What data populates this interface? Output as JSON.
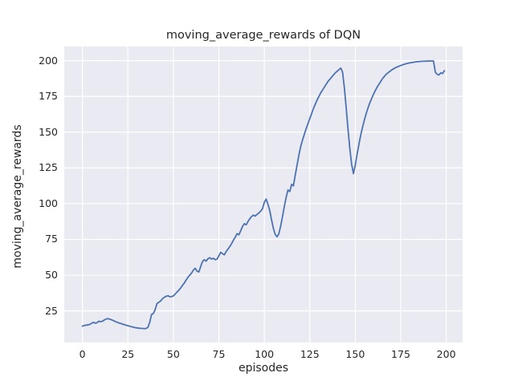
{
  "chart_data": {
    "type": "line",
    "title": "moving_average_rewards of DQN",
    "xlabel": "episodes",
    "ylabel": "moving_average_rewards",
    "x_ticks": [
      0,
      25,
      50,
      75,
      100,
      125,
      150,
      175,
      200
    ],
    "y_ticks": [
      25,
      50,
      75,
      100,
      125,
      150,
      175,
      200
    ],
    "xlim": [
      -10,
      209
    ],
    "ylim": [
      2.9,
      209.9
    ],
    "grid": true,
    "legend_position": "none",
    "colors": {
      "line": "#4C72B0",
      "plot_background": "#EAEAF2",
      "gridline": "#FFFFFF",
      "text": "#262626",
      "figure_background": "#FFFFFF"
    },
    "series": [
      {
        "name": "moving_average_rewards",
        "color": "#4C72B0",
        "x_spec": {
          "start": 0,
          "step": 1,
          "count": 200
        },
        "y": [
          14.3,
          14.8,
          15.0,
          15.2,
          15.5,
          16.3,
          17.0,
          16.4,
          16.7,
          17.8,
          17.4,
          17.8,
          18.6,
          19.3,
          19.6,
          19.2,
          18.8,
          18.2,
          17.6,
          17.1,
          16.6,
          16.2,
          15.8,
          15.4,
          15.0,
          14.6,
          14.3,
          13.9,
          13.6,
          13.3,
          13.1,
          12.9,
          12.8,
          12.7,
          12.6,
          12.7,
          13.5,
          17.0,
          22.5,
          23.2,
          26.0,
          30.2,
          31.0,
          32.0,
          33.5,
          34.5,
          35.2,
          35.6,
          34.9,
          35.0,
          35.5,
          36.8,
          38.2,
          39.5,
          41.0,
          42.8,
          44.5,
          46.5,
          48.5,
          50.0,
          51.5,
          53.5,
          54.8,
          52.8,
          52.2,
          56.0,
          59.5,
          60.8,
          59.8,
          61.5,
          62.2,
          61.2,
          61.8,
          60.8,
          61.2,
          63.5,
          66.0,
          65.0,
          64.2,
          66.5,
          68.2,
          70.0,
          72.0,
          74.5,
          76.5,
          79.0,
          78.2,
          81.0,
          84.0,
          86.0,
          85.2,
          87.5,
          89.5,
          91.0,
          92.0,
          91.3,
          92.5,
          93.5,
          94.8,
          96.5,
          101.0,
          103.2,
          99.5,
          95.0,
          88.5,
          82.5,
          78.5,
          76.8,
          79.0,
          84.5,
          91.0,
          98.0,
          104.5,
          109.5,
          108.5,
          113.5,
          112.5,
          120.0,
          127.0,
          134.0,
          140.0,
          144.5,
          148.5,
          152.5,
          156.0,
          159.5,
          163.0,
          166.5,
          169.5,
          172.5,
          175.0,
          177.5,
          179.5,
          181.5,
          183.5,
          185.5,
          187.0,
          188.5,
          190.0,
          191.5,
          192.5,
          193.7,
          194.8,
          192.0,
          181.0,
          167.0,
          152.0,
          138.5,
          127.5,
          121.0,
          127.0,
          134.5,
          141.5,
          148.0,
          153.5,
          158.5,
          163.0,
          167.0,
          170.5,
          173.5,
          176.5,
          179.0,
          181.5,
          183.5,
          185.5,
          187.5,
          189.0,
          190.5,
          191.5,
          192.5,
          193.5,
          194.3,
          195.0,
          195.6,
          196.1,
          196.6,
          197.1,
          197.5,
          197.9,
          198.2,
          198.5,
          198.7,
          198.9,
          199.1,
          199.3,
          199.4,
          199.5,
          199.6,
          199.6,
          199.7,
          199.7,
          199.8,
          199.8,
          199.8,
          192.0,
          190.5,
          190.0,
          191.5,
          191.0,
          193.0
        ]
      }
    ]
  }
}
